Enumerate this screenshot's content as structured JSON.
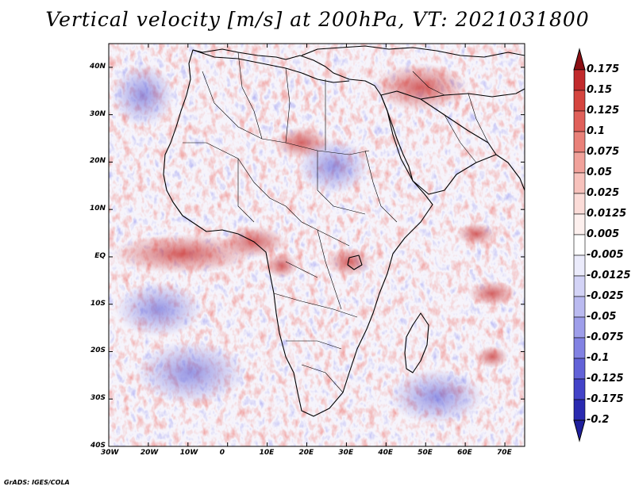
{
  "title": "Vertical velocity [m/s] at 200hPa, VT: 2021031800",
  "credit": "GrADS: IGES/COLA",
  "map": {
    "lon_range": [
      -30,
      75
    ],
    "lat_range": [
      -40,
      45
    ],
    "lat_ticks": [
      {
        "value": 40,
        "label": "40N"
      },
      {
        "value": 30,
        "label": "30N"
      },
      {
        "value": 20,
        "label": "20N"
      },
      {
        "value": 10,
        "label": "10N"
      },
      {
        "value": 0,
        "label": "EQ"
      },
      {
        "value": -10,
        "label": "10S"
      },
      {
        "value": -20,
        "label": "20S"
      },
      {
        "value": -30,
        "label": "30S"
      },
      {
        "value": -40,
        "label": "40S"
      }
    ],
    "lon_ticks": [
      {
        "value": -30,
        "label": "30W"
      },
      {
        "value": -20,
        "label": "20W"
      },
      {
        "value": -10,
        "label": "10W"
      },
      {
        "value": 0,
        "label": "0"
      },
      {
        "value": 10,
        "label": "10E"
      },
      {
        "value": 20,
        "label": "20E"
      },
      {
        "value": 30,
        "label": "30E"
      },
      {
        "value": 40,
        "label": "40E"
      },
      {
        "value": 50,
        "label": "50E"
      },
      {
        "value": 60,
        "label": "60E"
      },
      {
        "value": 70,
        "label": "70E"
      }
    ]
  },
  "colorbar": {
    "levels": [
      {
        "label": "0.175",
        "color": "#a11a1f"
      },
      {
        "label": "0.15",
        "color": "#c12a2c"
      },
      {
        "label": "0.125",
        "color": "#d5453f"
      },
      {
        "label": "0.1",
        "color": "#e0605a"
      },
      {
        "label": "0.075",
        "color": "#e98179"
      },
      {
        "label": "0.05",
        "color": "#f1a29b"
      },
      {
        "label": "0.025",
        "color": "#f7c2bc"
      },
      {
        "label": "0.0125",
        "color": "#fbdcd8"
      },
      {
        "label": "0.005",
        "color": "#fdf0ee"
      },
      {
        "label": "-0.005",
        "color": "#ffffff"
      },
      {
        "label": "-0.0125",
        "color": "#ebebfb"
      },
      {
        "label": "-0.025",
        "color": "#d3d3f6"
      },
      {
        "label": "-0.05",
        "color": "#babaf0"
      },
      {
        "label": "-0.075",
        "color": "#9e9eea"
      },
      {
        "label": "-0.1",
        "color": "#8282e3"
      },
      {
        "label": "-0.125",
        "color": "#6262d8"
      },
      {
        "label": "-0.175",
        "color": "#4343c8"
      },
      {
        "label": "-0.2",
        "color": "#2a2ab0"
      }
    ],
    "top_arrow_color": "#8b0f14",
    "bottom_arrow_color": "#1f1f9c"
  },
  "chart_data": {
    "type": "heatmap",
    "title": "Vertical velocity [m/s] at 200hPa, VT: 2021031800",
    "variable": "Vertical velocity",
    "units": "m/s",
    "level": "200hPa",
    "valid_time": "2021031800",
    "x_range": [
      -30,
      75
    ],
    "y_range": [
      -40,
      45
    ],
    "grid": false
  }
}
